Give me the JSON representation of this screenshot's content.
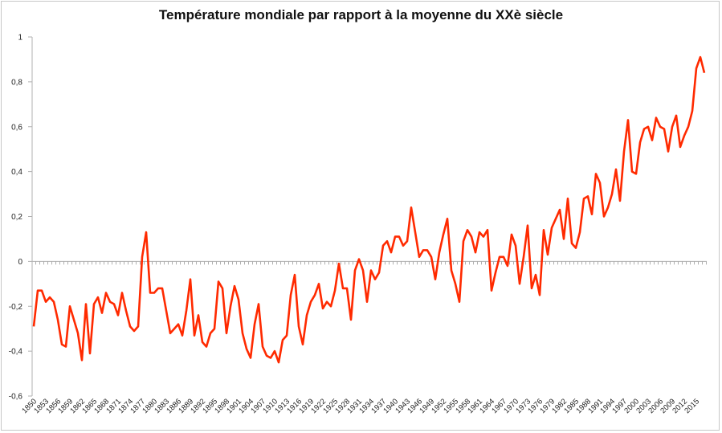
{
  "chart_data": {
    "type": "line",
    "title": "Température mondiale par rapport à la moyenne du XXè siècle",
    "xlabel": "",
    "ylabel": "",
    "ylim": [
      -0.6,
      1
    ],
    "yticks": [
      "-0,6",
      "-0,4",
      "-0,2",
      "0",
      "0,2",
      "0,4",
      "0,6",
      "0,8",
      "1"
    ],
    "ytick_values": [
      -0.6,
      -0.4,
      -0.2,
      0,
      0.2,
      0.4,
      0.6,
      0.8,
      1
    ],
    "xticks": [
      "1850",
      "1853",
      "1856",
      "1859",
      "1862",
      "1865",
      "1868",
      "1871",
      "1874",
      "1877",
      "1880",
      "1883",
      "1886",
      "1889",
      "1892",
      "1895",
      "1898",
      "1901",
      "1904",
      "1907",
      "1910",
      "1913",
      "1916",
      "1919",
      "1922",
      "1925",
      "1928",
      "1931",
      "1934",
      "1937",
      "1940",
      "1943",
      "1946",
      "1949",
      "1952",
      "1955",
      "1958",
      "1961",
      "1964",
      "1967",
      "1970",
      "1973",
      "1976",
      "1979",
      "1982",
      "1985",
      "1988",
      "1991",
      "1994",
      "1997",
      "2000",
      "2003",
      "2006",
      "2009",
      "2012",
      "2015"
    ],
    "grid": false,
    "legend": "none",
    "line_color": "#ff2a00",
    "x_start": 1850,
    "x_end": 2017,
    "values": [
      -0.29,
      -0.13,
      -0.13,
      -0.18,
      -0.16,
      -0.18,
      -0.26,
      -0.37,
      -0.38,
      -0.2,
      -0.26,
      -0.32,
      -0.44,
      -0.19,
      -0.41,
      -0.19,
      -0.16,
      -0.23,
      -0.14,
      -0.18,
      -0.19,
      -0.24,
      -0.14,
      -0.22,
      -0.29,
      -0.31,
      -0.29,
      0.02,
      0.13,
      -0.14,
      -0.14,
      -0.12,
      -0.12,
      -0.22,
      -0.32,
      -0.3,
      -0.28,
      -0.33,
      -0.22,
      -0.08,
      -0.33,
      -0.24,
      -0.36,
      -0.38,
      -0.32,
      -0.3,
      -0.09,
      -0.12,
      -0.32,
      -0.2,
      -0.11,
      -0.17,
      -0.32,
      -0.39,
      -0.43,
      -0.28,
      -0.19,
      -0.38,
      -0.42,
      -0.43,
      -0.4,
      -0.45,
      -0.35,
      -0.33,
      -0.15,
      -0.06,
      -0.29,
      -0.37,
      -0.24,
      -0.18,
      -0.15,
      -0.1,
      -0.21,
      -0.18,
      -0.2,
      -0.13,
      -0.01,
      -0.12,
      -0.12,
      -0.26,
      -0.04,
      0.01,
      -0.04,
      -0.18,
      -0.04,
      -0.08,
      -0.05,
      0.07,
      0.09,
      0.04,
      0.11,
      0.11,
      0.07,
      0.09,
      0.24,
      0.13,
      0.02,
      0.05,
      0.05,
      0.02,
      -0.08,
      0.04,
      0.12,
      0.19,
      -0.04,
      -0.1,
      -0.18,
      0.09,
      0.14,
      0.11,
      0.04,
      0.13,
      0.11,
      0.14,
      -0.13,
      -0.05,
      0.02,
      0.02,
      -0.02,
      0.12,
      0.07,
      -0.1,
      0.02,
      0.16,
      -0.12,
      -0.06,
      -0.15,
      0.14,
      0.03,
      0.15,
      0.19,
      0.23,
      0.1,
      0.28,
      0.08,
      0.06,
      0.13,
      0.28,
      0.29,
      0.21,
      0.39,
      0.35,
      0.2,
      0.24,
      0.3,
      0.41,
      0.27,
      0.49,
      0.63,
      0.4,
      0.39,
      0.53,
      0.59,
      0.6,
      0.54,
      0.64,
      0.6,
      0.59,
      0.49,
      0.6,
      0.65,
      0.51,
      0.56,
      0.6,
      0.67,
      0.86,
      0.91,
      0.84
    ]
  }
}
